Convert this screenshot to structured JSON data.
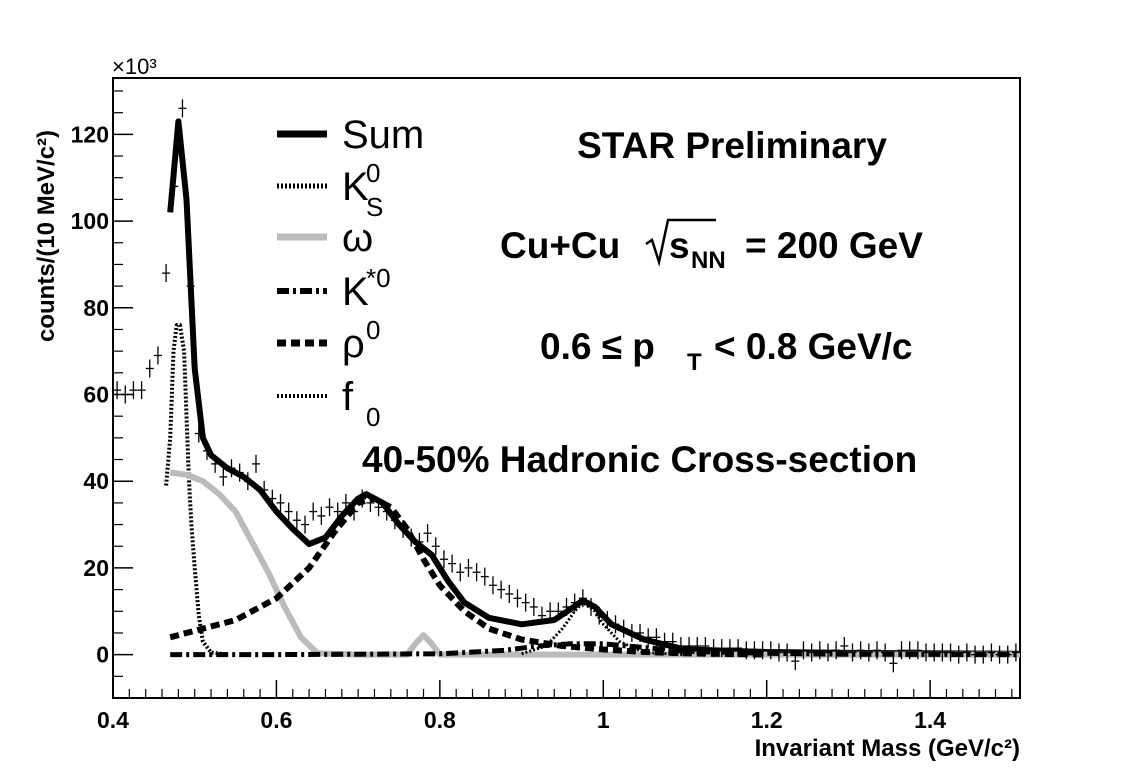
{
  "chart_data": {
    "type": "line",
    "title": "",
    "xlabel": "Invariant Mass (GeV/c²)",
    "ylabel": "counts/(10 MeV/c²)",
    "y_multiplier": "×10³",
    "xlim": [
      0.4,
      1.51
    ],
    "ylim": [
      -10,
      133
    ],
    "x_ticks": [
      0.4,
      0.6,
      0.8,
      1.0,
      1.2,
      1.4
    ],
    "x_tick_labels": [
      "0.4",
      "0.6",
      "0.8",
      "1",
      "1.2",
      "1.4"
    ],
    "y_ticks": [
      0,
      20,
      40,
      60,
      80,
      100,
      120
    ],
    "y_tick_labels": [
      "0",
      "20",
      "40",
      "60",
      "80",
      "100",
      "120"
    ],
    "series": [
      {
        "name": "Sum",
        "style": "solid",
        "color": "#000000",
        "width": 6,
        "points": [
          [
            0.47,
            102
          ],
          [
            0.48,
            123
          ],
          [
            0.49,
            105
          ],
          [
            0.5,
            66
          ],
          [
            0.51,
            50
          ],
          [
            0.52,
            46
          ],
          [
            0.54,
            43
          ],
          [
            0.56,
            41
          ],
          [
            0.58,
            38
          ],
          [
            0.6,
            33
          ],
          [
            0.62,
            29
          ],
          [
            0.64,
            25.5
          ],
          [
            0.66,
            27
          ],
          [
            0.68,
            32
          ],
          [
            0.7,
            36
          ],
          [
            0.71,
            37
          ],
          [
            0.73,
            35
          ],
          [
            0.75,
            30
          ],
          [
            0.77,
            26
          ],
          [
            0.79,
            23
          ],
          [
            0.81,
            17
          ],
          [
            0.83,
            12
          ],
          [
            0.86,
            8.5
          ],
          [
            0.9,
            7
          ],
          [
            0.94,
            8
          ],
          [
            0.96,
            10.5
          ],
          [
            0.975,
            12.5
          ],
          [
            0.99,
            11
          ],
          [
            1.01,
            7
          ],
          [
            1.05,
            3.5
          ],
          [
            1.1,
            1.2
          ],
          [
            1.2,
            0.6
          ],
          [
            1.3,
            0.4
          ],
          [
            1.4,
            0.3
          ],
          [
            1.51,
            0.2
          ]
        ]
      },
      {
        "name": "K_S^0",
        "style": "dotted",
        "color": "#000000",
        "width": 4,
        "points": [
          [
            0.465,
            39
          ],
          [
            0.47,
            50
          ],
          [
            0.474,
            70
          ],
          [
            0.478,
            76
          ],
          [
            0.482,
            76
          ],
          [
            0.487,
            70
          ],
          [
            0.49,
            55
          ],
          [
            0.493,
            40
          ],
          [
            0.496,
            30
          ],
          [
            0.5,
            20
          ],
          [
            0.505,
            9
          ],
          [
            0.51,
            3
          ],
          [
            0.52,
            0.5
          ],
          [
            0.54,
            0
          ]
        ]
      },
      {
        "name": "ω",
        "style": "solid",
        "color": "#bbbbbb",
        "width": 6,
        "points": [
          [
            0.47,
            42
          ],
          [
            0.49,
            41.5
          ],
          [
            0.51,
            40
          ],
          [
            0.53,
            37
          ],
          [
            0.55,
            33
          ],
          [
            0.57,
            26
          ],
          [
            0.59,
            19
          ],
          [
            0.61,
            11
          ],
          [
            0.63,
            4
          ],
          [
            0.65,
            0.3
          ],
          [
            0.7,
            0
          ],
          [
            0.76,
            0
          ],
          [
            0.77,
            2.5
          ],
          [
            0.78,
            4.5
          ],
          [
            0.79,
            2.5
          ],
          [
            0.8,
            0
          ],
          [
            0.9,
            0
          ],
          [
            1.1,
            0
          ],
          [
            1.3,
            0
          ],
          [
            1.51,
            0
          ]
        ]
      },
      {
        "name": "K^{*0}",
        "style": "dashdot",
        "color": "#000000",
        "width": 5,
        "points": [
          [
            0.47,
            0
          ],
          [
            0.6,
            0
          ],
          [
            0.8,
            0.2
          ],
          [
            0.88,
            1
          ],
          [
            0.92,
            2
          ],
          [
            0.96,
            2.5
          ],
          [
            1.0,
            2.5
          ],
          [
            1.04,
            1.8
          ],
          [
            1.1,
            0.8
          ],
          [
            1.2,
            0.3
          ],
          [
            1.3,
            0.1
          ],
          [
            1.51,
            0
          ]
        ]
      },
      {
        "name": "ρ^0",
        "style": "dashed",
        "color": "#000000",
        "width": 6,
        "points": [
          [
            0.47,
            4
          ],
          [
            0.5,
            5.5
          ],
          [
            0.55,
            8
          ],
          [
            0.6,
            13
          ],
          [
            0.64,
            20
          ],
          [
            0.67,
            28
          ],
          [
            0.7,
            35
          ],
          [
            0.72,
            36
          ],
          [
            0.74,
            34
          ],
          [
            0.76,
            29
          ],
          [
            0.78,
            22
          ],
          [
            0.8,
            16
          ],
          [
            0.83,
            10
          ],
          [
            0.86,
            6
          ],
          [
            0.9,
            3.5
          ],
          [
            0.95,
            2
          ],
          [
            1.0,
            1.2
          ],
          [
            1.05,
            0.6
          ],
          [
            1.1,
            0.3
          ],
          [
            1.2,
            0
          ]
        ]
      },
      {
        "name": "f_0",
        "style": "dotted",
        "color": "#000000",
        "width": 3,
        "points": [
          [
            0.9,
            0.2
          ],
          [
            0.93,
            2
          ],
          [
            0.95,
            6
          ],
          [
            0.965,
            10
          ],
          [
            0.975,
            12
          ],
          [
            0.99,
            10
          ],
          [
            1.0,
            7
          ],
          [
            1.02,
            3
          ],
          [
            1.05,
            0.5
          ],
          [
            1.1,
            0
          ]
        ]
      }
    ],
    "data_points": {
      "name": "Data",
      "points": [
        [
          0.405,
          61
        ],
        [
          0.415,
          60
        ],
        [
          0.425,
          61
        ],
        [
          0.435,
          61
        ],
        [
          0.445,
          66
        ],
        [
          0.455,
          69
        ],
        [
          0.465,
          88
        ],
        [
          0.475,
          108
        ],
        [
          0.485,
          126
        ],
        [
          0.495,
          85
        ],
        [
          0.505,
          51
        ],
        [
          0.515,
          47
        ],
        [
          0.525,
          44
        ],
        [
          0.535,
          41
        ],
        [
          0.545,
          43
        ],
        [
          0.555,
          42
        ],
        [
          0.565,
          40
        ],
        [
          0.575,
          44
        ],
        [
          0.585,
          38
        ],
        [
          0.595,
          36
        ],
        [
          0.605,
          35
        ],
        [
          0.615,
          33
        ],
        [
          0.625,
          31
        ],
        [
          0.635,
          30
        ],
        [
          0.645,
          33
        ],
        [
          0.655,
          32
        ],
        [
          0.665,
          34
        ],
        [
          0.675,
          33
        ],
        [
          0.685,
          35
        ],
        [
          0.695,
          33
        ],
        [
          0.705,
          36
        ],
        [
          0.715,
          35
        ],
        [
          0.725,
          34
        ],
        [
          0.735,
          33
        ],
        [
          0.745,
          31
        ],
        [
          0.755,
          29
        ],
        [
          0.765,
          27
        ],
        [
          0.775,
          26
        ],
        [
          0.785,
          28
        ],
        [
          0.795,
          25
        ],
        [
          0.805,
          22
        ],
        [
          0.815,
          21
        ],
        [
          0.825,
          19
        ],
        [
          0.835,
          20
        ],
        [
          0.845,
          19
        ],
        [
          0.855,
          18
        ],
        [
          0.865,
          16
        ],
        [
          0.875,
          15
        ],
        [
          0.885,
          14
        ],
        [
          0.895,
          13
        ],
        [
          0.905,
          12
        ],
        [
          0.915,
          11
        ],
        [
          0.925,
          9
        ],
        [
          0.935,
          10
        ],
        [
          0.945,
          10
        ],
        [
          0.955,
          11
        ],
        [
          0.965,
          12
        ],
        [
          0.975,
          13
        ],
        [
          0.985,
          11
        ],
        [
          0.995,
          9
        ],
        [
          1.005,
          8
        ],
        [
          1.015,
          7
        ],
        [
          1.025,
          6
        ],
        [
          1.035,
          5
        ],
        [
          1.045,
          5
        ],
        [
          1.055,
          4
        ],
        [
          1.065,
          4
        ],
        [
          1.075,
          3
        ],
        [
          1.085,
          3
        ],
        [
          1.095,
          2
        ],
        [
          1.105,
          2
        ],
        [
          1.115,
          2
        ],
        [
          1.125,
          2
        ],
        [
          1.135,
          1.5
        ],
        [
          1.145,
          1.5
        ],
        [
          1.155,
          1.5
        ],
        [
          1.165,
          1.5
        ],
        [
          1.175,
          1
        ],
        [
          1.185,
          1
        ],
        [
          1.195,
          1
        ],
        [
          1.205,
          1
        ],
        [
          1.215,
          0.5
        ],
        [
          1.225,
          0.5
        ],
        [
          1.235,
          -1.5
        ],
        [
          1.245,
          1
        ],
        [
          1.255,
          0.5
        ],
        [
          1.265,
          1
        ],
        [
          1.275,
          0.5
        ],
        [
          1.285,
          1
        ],
        [
          1.295,
          2
        ],
        [
          1.305,
          0.5
        ],
        [
          1.315,
          1
        ],
        [
          1.325,
          0.5
        ],
        [
          1.335,
          1
        ],
        [
          1.345,
          0.5
        ],
        [
          1.355,
          -2
        ],
        [
          1.365,
          1
        ],
        [
          1.375,
          1
        ],
        [
          1.385,
          1
        ],
        [
          1.395,
          0.5
        ],
        [
          1.405,
          0.5
        ],
        [
          1.415,
          0.5
        ],
        [
          1.425,
          0.5
        ],
        [
          1.435,
          0
        ],
        [
          1.445,
          0.5
        ],
        [
          1.455,
          0
        ],
        [
          1.465,
          0
        ],
        [
          1.475,
          0.5
        ],
        [
          1.485,
          0
        ],
        [
          1.495,
          0
        ],
        [
          1.505,
          0.5
        ]
      ]
    },
    "legend": {
      "position": "top-left",
      "entries": [
        {
          "label": "Sum",
          "sup": "",
          "sub": ""
        },
        {
          "label": "K",
          "sup": "0",
          "sub": "S"
        },
        {
          "label": "ω",
          "sup": "",
          "sub": ""
        },
        {
          "label": "K",
          "sup": "*0",
          "sub": ""
        },
        {
          "label": "ρ",
          "sup": "0",
          "sub": ""
        },
        {
          "label": "f",
          "sup": "",
          "sub": "0"
        }
      ]
    },
    "annotations": {
      "preliminary": "STAR Preliminary",
      "system_a": "Cu+Cu",
      "system_s": "s",
      "system_nn": "NN",
      "system_b": "= 200 GeV",
      "pt_a": "0.6 ≤ p",
      "pt_sub": "T",
      "pt_b": "< 0.8 GeV/c",
      "centrality": "40-50% Hadronic Cross-section"
    }
  }
}
